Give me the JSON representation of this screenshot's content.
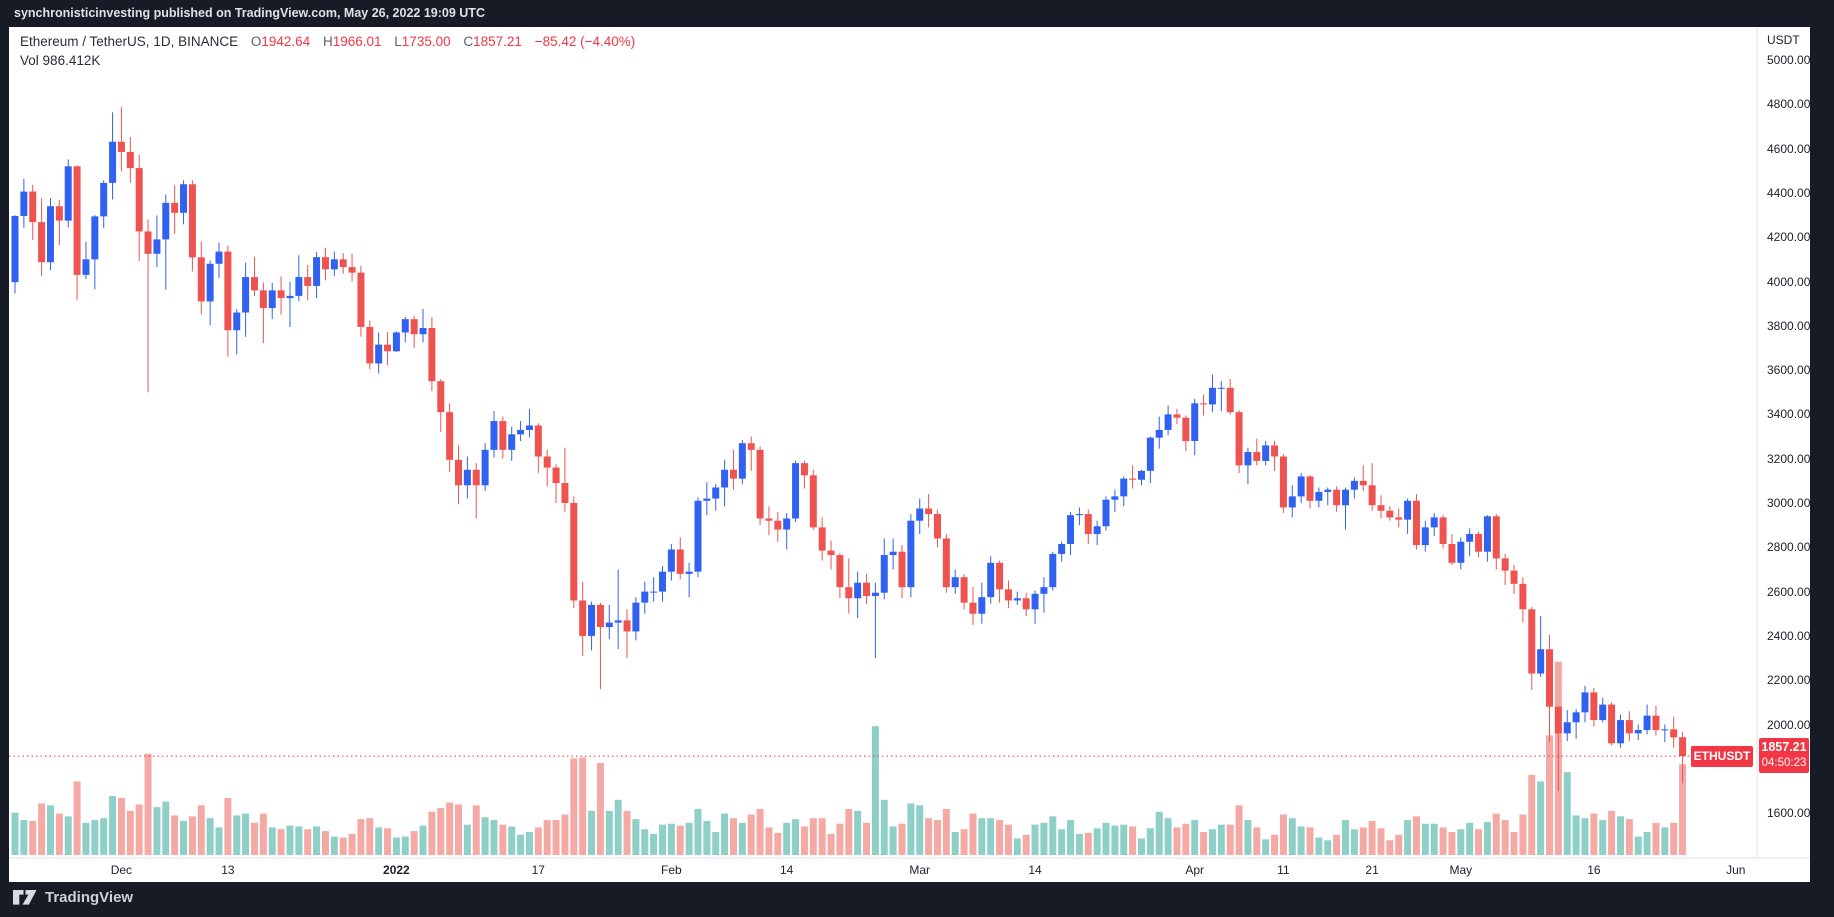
{
  "attribution_bar": {
    "text": "synchronisticinvesting published on TradingView.com, May 26, 2022 19:09 UTC"
  },
  "header": {
    "symbol_title": "Ethereum / TetherUS, 1D, BINANCE",
    "ohlc": {
      "open_label": "O",
      "open": "1942.64",
      "high_label": "H",
      "high": "1966.01",
      "low_label": "L",
      "low": "1735.00",
      "close_label": "C",
      "close": "1857.21",
      "change": "−85.42 (−4.40%)"
    },
    "volume_label": "Vol",
    "volume_value": "986.412K"
  },
  "price_axis": {
    "currency": "USDT",
    "ticks": [
      {
        "price": 5000,
        "label": "5000.00"
      },
      {
        "price": 4800,
        "label": "4800.00"
      },
      {
        "price": 4600,
        "label": "4600.00"
      },
      {
        "price": 4400,
        "label": "4400.00"
      },
      {
        "price": 4200,
        "label": "4200.00"
      },
      {
        "price": 4000,
        "label": "4000.00"
      },
      {
        "price": 3800,
        "label": "3800.00"
      },
      {
        "price": 3600,
        "label": "3600.00"
      },
      {
        "price": 3400,
        "label": "3400.00"
      },
      {
        "price": 3200,
        "label": "3200.00"
      },
      {
        "price": 3000,
        "label": "3000.00"
      },
      {
        "price": 2800,
        "label": "2800.00"
      },
      {
        "price": 2600,
        "label": "2600.00"
      },
      {
        "price": 2400,
        "label": "2400.00"
      },
      {
        "price": 2200,
        "label": "2200.00"
      },
      {
        "price": 2000,
        "label": "2000.00"
      },
      {
        "price": 1600,
        "label": "1600.00"
      }
    ],
    "last_price_flag": {
      "price": "1857.21",
      "countdown": "04:50:23"
    }
  },
  "time_axis": {
    "ticks": [
      {
        "day": 12,
        "label": "Dec"
      },
      {
        "day": 24,
        "label": "13"
      },
      {
        "day": 43,
        "label": "2022",
        "major": true
      },
      {
        "day": 59,
        "label": "17"
      },
      {
        "day": 74,
        "label": "Feb"
      },
      {
        "day": 87,
        "label": "14"
      },
      {
        "day": 102,
        "label": "Mar"
      },
      {
        "day": 115,
        "label": "14"
      },
      {
        "day": 133,
        "label": "Apr"
      },
      {
        "day": 143,
        "label": "11"
      },
      {
        "day": 153,
        "label": "21"
      },
      {
        "day": 163,
        "label": "May"
      },
      {
        "day": 178,
        "label": "16"
      },
      {
        "day": 194,
        "label": "Jun"
      }
    ]
  },
  "price_line_flag": "ETHUSDT",
  "footer": {
    "brand": "TradingView"
  },
  "colors": {
    "up": "#3161f1",
    "down": "#ef5350",
    "vol_up": "#8ecfc7",
    "vol_down": "#f4a9a5",
    "accent_red": "#f23645",
    "axis_line": "#dcdfe5"
  },
  "chart_data": {
    "type": "candlestick",
    "title": "Ethereum / TetherUS, 1D, BINANCE",
    "symbol": "ETHUSDT",
    "exchange": "BINANCE",
    "interval": "1D",
    "start_date": "2021-11-19",
    "end_date": "2022-05-26",
    "columns": [
      "open",
      "high",
      "low",
      "close",
      "volume_k"
    ],
    "y_axis": {
      "currency": "USDT",
      "tick_step": 200,
      "visible_min": 1450,
      "visible_max": 5120
    },
    "volume_axis": {
      "unit": "K",
      "max_estimated": 2100
    },
    "legend_note": "blue = up day, red = down day; volume pane tinted teal/pink",
    "last": {
      "open": 1942.64,
      "high": 1966.01,
      "low": 1735.0,
      "close": 1857.21,
      "volume_k": 986.412,
      "change": -85.42,
      "change_pct": -4.4
    },
    "candles": [
      [
        3997,
        4299,
        3946,
        4296,
        460
      ],
      [
        4296,
        4463,
        4242,
        4406,
        380
      ],
      [
        4406,
        4436,
        4187,
        4268,
        370
      ],
      [
        4268,
        4376,
        4025,
        4087,
        560
      ],
      [
        4087,
        4376,
        4051,
        4340,
        540
      ],
      [
        4340,
        4369,
        4165,
        4275,
        450
      ],
      [
        4275,
        4551,
        4245,
        4520,
        420
      ],
      [
        4520,
        4525,
        3917,
        4030,
        800
      ],
      [
        4030,
        4180,
        4011,
        4100,
        350
      ],
      [
        4100,
        4300,
        3965,
        4294,
        380
      ],
      [
        4294,
        4457,
        4242,
        4445,
        400
      ],
      [
        4445,
        4764,
        4370,
        4631,
        640
      ],
      [
        4631,
        4787,
        4498,
        4585,
        620
      ],
      [
        4585,
        4653,
        4446,
        4512,
        480
      ],
      [
        4512,
        4572,
        4093,
        4226,
        550
      ],
      [
        4226,
        4280,
        3500,
        4125,
        1100
      ],
      [
        4125,
        4298,
        4065,
        4190,
        520
      ],
      [
        4190,
        4393,
        3963,
        4355,
        580
      ],
      [
        4355,
        4435,
        4215,
        4310,
        430
      ],
      [
        4310,
        4457,
        4258,
        4439,
        370
      ],
      [
        4439,
        4456,
        4045,
        4109,
        420
      ],
      [
        4109,
        4180,
        3850,
        3910,
        540
      ],
      [
        3910,
        4095,
        3803,
        4080,
        400
      ],
      [
        4080,
        4175,
        4016,
        4135,
        300
      ],
      [
        4135,
        4162,
        3661,
        3780,
        620
      ],
      [
        3780,
        3875,
        3671,
        3860,
        430
      ],
      [
        3860,
        4085,
        3750,
        4020,
        450
      ],
      [
        4020,
        4112,
        3935,
        3960,
        350
      ],
      [
        3960,
        3996,
        3722,
        3880,
        450
      ],
      [
        3880,
        3994,
        3830,
        3960,
        300
      ],
      [
        3960,
        4023,
        3850,
        3925,
        280
      ],
      [
        3925,
        3999,
        3795,
        3935,
        320
      ],
      [
        3935,
        4118,
        3910,
        4020,
        310
      ],
      [
        4020,
        4075,
        3915,
        3980,
        280
      ],
      [
        3980,
        4134,
        3925,
        4110,
        310
      ],
      [
        4110,
        4152,
        4005,
        4055,
        260
      ],
      [
        4055,
        4135,
        4025,
        4100,
        200
      ],
      [
        4100,
        4128,
        4035,
        4065,
        190
      ],
      [
        4065,
        4125,
        4000,
        4040,
        230
      ],
      [
        4040,
        4071,
        3751,
        3795,
        390
      ],
      [
        3795,
        3824,
        3604,
        3630,
        400
      ],
      [
        3630,
        3770,
        3585,
        3715,
        300
      ],
      [
        3715,
        3772,
        3622,
        3685,
        290
      ],
      [
        3685,
        3775,
        3682,
        3770,
        190
      ],
      [
        3770,
        3840,
        3725,
        3830,
        200
      ],
      [
        3830,
        3845,
        3700,
        3762,
        260
      ],
      [
        3762,
        3876,
        3725,
        3790,
        320
      ],
      [
        3790,
        3840,
        3505,
        3550,
        470
      ],
      [
        3550,
        3560,
        3320,
        3410,
        510
      ],
      [
        3410,
        3450,
        3140,
        3195,
        570
      ],
      [
        3195,
        3260,
        2995,
        3080,
        550
      ],
      [
        3080,
        3210,
        3020,
        3150,
        330
      ],
      [
        3150,
        3180,
        2930,
        3080,
        540
      ],
      [
        3080,
        3270,
        3055,
        3240,
        410
      ],
      [
        3240,
        3415,
        3205,
        3370,
        380
      ],
      [
        3370,
        3390,
        3200,
        3240,
        330
      ],
      [
        3240,
        3345,
        3190,
        3310,
        310
      ],
      [
        3310,
        3370,
        3280,
        3330,
        220
      ],
      [
        3330,
        3425,
        3295,
        3350,
        250
      ],
      [
        3350,
        3360,
        3135,
        3210,
        300
      ],
      [
        3210,
        3240,
        3075,
        3160,
        380
      ],
      [
        3160,
        3175,
        3000,
        3090,
        380
      ],
      [
        3090,
        3250,
        2960,
        3000,
        440
      ],
      [
        3000,
        3030,
        2525,
        2560,
        1050
      ],
      [
        2560,
        2645,
        2310,
        2400,
        1060
      ],
      [
        2400,
        2555,
        2335,
        2540,
        480
      ],
      [
        2540,
        2550,
        2160,
        2440,
        1000
      ],
      [
        2440,
        2540,
        2385,
        2460,
        480
      ],
      [
        2460,
        2700,
        2340,
        2470,
        600
      ],
      [
        2470,
        2520,
        2300,
        2420,
        480
      ],
      [
        2420,
        2575,
        2380,
        2550,
        390
      ],
      [
        2550,
        2645,
        2500,
        2600,
        280
      ],
      [
        2600,
        2665,
        2555,
        2600,
        230
      ],
      [
        2600,
        2715,
        2555,
        2690,
        330
      ],
      [
        2690,
        2815,
        2650,
        2790,
        340
      ],
      [
        2790,
        2845,
        2655,
        2680,
        320
      ],
      [
        2680,
        2730,
        2575,
        2690,
        350
      ],
      [
        2690,
        3025,
        2665,
        3010,
        500
      ],
      [
        3010,
        3095,
        2945,
        3020,
        370
      ],
      [
        3020,
        3085,
        2965,
        3070,
        250
      ],
      [
        3070,
        3195,
        2985,
        3150,
        450
      ],
      [
        3150,
        3240,
        3060,
        3110,
        400
      ],
      [
        3110,
        3285,
        3085,
        3270,
        350
      ],
      [
        3270,
        3300,
        3145,
        3240,
        440
      ],
      [
        3240,
        3255,
        2900,
        2930,
        500
      ],
      [
        2930,
        2985,
        2855,
        2920,
        300
      ],
      [
        2920,
        2960,
        2825,
        2880,
        240
      ],
      [
        2880,
        2955,
        2790,
        2930,
        350
      ],
      [
        2930,
        3190,
        2915,
        3180,
        390
      ],
      [
        3180,
        3190,
        3065,
        3125,
        310
      ],
      [
        3125,
        3150,
        2880,
        2890,
        400
      ],
      [
        2890,
        2935,
        2740,
        2785,
        400
      ],
      [
        2785,
        2830,
        2700,
        2765,
        230
      ],
      [
        2765,
        2775,
        2570,
        2620,
        340
      ],
      [
        2620,
        2750,
        2500,
        2570,
        500
      ],
      [
        2570,
        2690,
        2480,
        2640,
        480
      ],
      [
        2640,
        2680,
        2545,
        2580,
        350
      ],
      [
        2580,
        2640,
        2300,
        2595,
        1400
      ],
      [
        2595,
        2840,
        2565,
        2765,
        600
      ],
      [
        2765,
        2840,
        2700,
        2780,
        310
      ],
      [
        2780,
        2810,
        2570,
        2620,
        340
      ],
      [
        2620,
        2950,
        2575,
        2920,
        560
      ],
      [
        2920,
        3020,
        2860,
        2975,
        540
      ],
      [
        2975,
        3040,
        2890,
        2950,
        400
      ],
      [
        2950,
        2970,
        2800,
        2840,
        380
      ],
      [
        2840,
        2860,
        2595,
        2620,
        500
      ],
      [
        2620,
        2700,
        2590,
        2665,
        250
      ],
      [
        2665,
        2680,
        2520,
        2550,
        280
      ],
      [
        2550,
        2620,
        2450,
        2500,
        450
      ],
      [
        2500,
        2640,
        2455,
        2575,
        400
      ],
      [
        2575,
        2760,
        2545,
        2730,
        400
      ],
      [
        2730,
        2740,
        2550,
        2610,
        380
      ],
      [
        2610,
        2650,
        2525,
        2560,
        330
      ],
      [
        2560,
        2600,
        2540,
        2570,
        180
      ],
      [
        2570,
        2595,
        2490,
        2520,
        220
      ],
      [
        2520,
        2605,
        2455,
        2590,
        330
      ],
      [
        2590,
        2665,
        2505,
        2620,
        350
      ],
      [
        2620,
        2780,
        2605,
        2770,
        420
      ],
      [
        2770,
        2825,
        2735,
        2815,
        280
      ],
      [
        2815,
        2960,
        2765,
        2945,
        380
      ],
      [
        2945,
        2980,
        2900,
        2950,
        230
      ],
      [
        2950,
        2970,
        2815,
        2860,
        240
      ],
      [
        2860,
        2920,
        2810,
        2895,
        290
      ],
      [
        2895,
        3030,
        2875,
        3015,
        350
      ],
      [
        3015,
        3060,
        2960,
        3030,
        320
      ],
      [
        3030,
        3120,
        2985,
        3110,
        330
      ],
      [
        3110,
        3170,
        3065,
        3105,
        310
      ],
      [
        3105,
        3150,
        3080,
        3145,
        180
      ],
      [
        3145,
        3300,
        3090,
        3295,
        290
      ],
      [
        3295,
        3390,
        3245,
        3330,
        470
      ],
      [
        3330,
        3440,
        3305,
        3400,
        400
      ],
      [
        3400,
        3425,
        3355,
        3385,
        300
      ],
      [
        3385,
        3395,
        3235,
        3280,
        340
      ],
      [
        3280,
        3470,
        3215,
        3450,
        380
      ],
      [
        3450,
        3490,
        3395,
        3445,
        250
      ],
      [
        3445,
        3580,
        3410,
        3520,
        280
      ],
      [
        3520,
        3550,
        3415,
        3520,
        330
      ],
      [
        3520,
        3560,
        3400,
        3410,
        330
      ],
      [
        3410,
        3420,
        3135,
        3170,
        540
      ],
      [
        3170,
        3250,
        3085,
        3230,
        380
      ],
      [
        3230,
        3290,
        3170,
        3190,
        300
      ],
      [
        3190,
        3280,
        3170,
        3260,
        170
      ],
      [
        3260,
        3280,
        3145,
        3210,
        220
      ],
      [
        3210,
        3220,
        2955,
        2980,
        440
      ],
      [
        2980,
        3080,
        2935,
        3030,
        400
      ],
      [
        3030,
        3135,
        3000,
        3120,
        310
      ],
      [
        3120,
        3125,
        2975,
        3010,
        300
      ],
      [
        3010,
        3070,
        2980,
        3050,
        190
      ],
      [
        3050,
        3070,
        2990,
        3060,
        160
      ],
      [
        3060,
        3075,
        2960,
        2990,
        220
      ],
      [
        2990,
        3070,
        2880,
        3060,
        380
      ],
      [
        3060,
        3115,
        3020,
        3100,
        280
      ],
      [
        3100,
        3170,
        3055,
        3080,
        300
      ],
      [
        3080,
        3180,
        2965,
        2990,
        370
      ],
      [
        2990,
        3035,
        2930,
        2965,
        290
      ],
      [
        2965,
        2985,
        2920,
        2935,
        160
      ],
      [
        2935,
        2975,
        2890,
        2925,
        220
      ],
      [
        2925,
        3020,
        2860,
        3010,
        380
      ],
      [
        3010,
        3040,
        2790,
        2810,
        420
      ],
      [
        2810,
        2920,
        2780,
        2890,
        340
      ],
      [
        2890,
        2955,
        2850,
        2935,
        340
      ],
      [
        2935,
        2945,
        2795,
        2815,
        300
      ],
      [
        2815,
        2860,
        2720,
        2730,
        250
      ],
      [
        2730,
        2845,
        2700,
        2825,
        280
      ],
      [
        2825,
        2885,
        2760,
        2860,
        350
      ],
      [
        2860,
        2870,
        2755,
        2780,
        280
      ],
      [
        2780,
        2945,
        2735,
        2940,
        360
      ],
      [
        2940,
        2950,
        2700,
        2750,
        450
      ],
      [
        2750,
        2770,
        2630,
        2695,
        380
      ],
      [
        2695,
        2720,
        2590,
        2635,
        250
      ],
      [
        2635,
        2665,
        2460,
        2520,
        440
      ],
      [
        2520,
        2530,
        2155,
        2230,
        870
      ],
      [
        2230,
        2490,
        2215,
        2340,
        800
      ],
      [
        2340,
        2405,
        1920,
        2080,
        1300
      ],
      [
        2080,
        2085,
        1700,
        1960,
        2100
      ],
      [
        1960,
        2065,
        1925,
        2010,
        900
      ],
      [
        2010,
        2070,
        1935,
        2055,
        430
      ],
      [
        2055,
        2175,
        2010,
        2145,
        400
      ],
      [
        2145,
        2165,
        1990,
        2020,
        450
      ],
      [
        2020,
        2120,
        2010,
        2090,
        380
      ],
      [
        2090,
        2100,
        1905,
        1915,
        480
      ],
      [
        1915,
        2045,
        1895,
        2020,
        420
      ],
      [
        2020,
        2060,
        1925,
        1960,
        390
      ],
      [
        1960,
        2000,
        1930,
        1975,
        200
      ],
      [
        1975,
        2090,
        1955,
        2040,
        250
      ],
      [
        2040,
        2085,
        1950,
        1975,
        350
      ],
      [
        1975,
        2000,
        1920,
        1978,
        300
      ],
      [
        1978,
        2035,
        1895,
        1942,
        350
      ],
      [
        1942.64,
        1966.01,
        1735,
        1857.21,
        986
      ]
    ]
  }
}
